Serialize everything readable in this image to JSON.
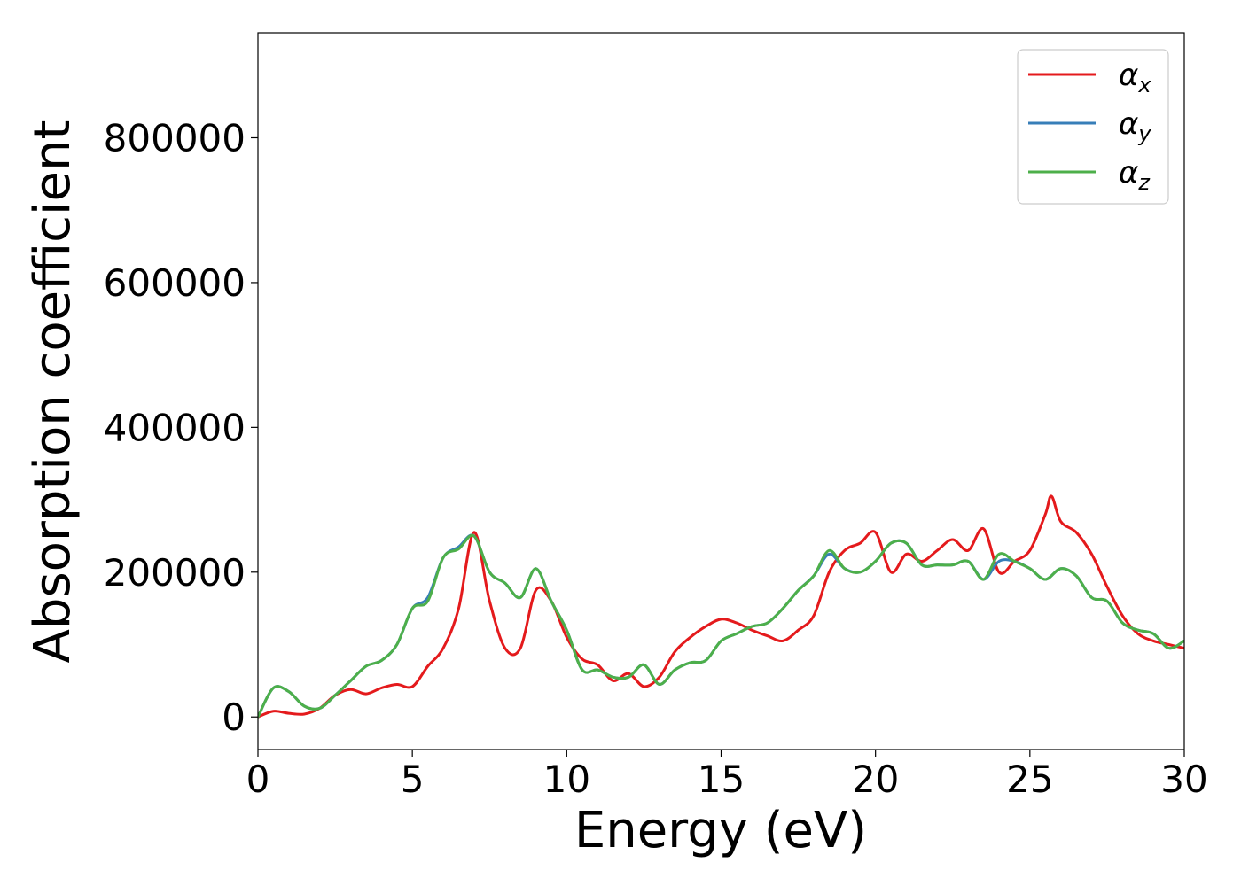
{
  "chart_data": {
    "type": "line",
    "title": "",
    "xlabel": "Energy (eV)",
    "ylabel": "Absorption coefficient",
    "xlim": [
      0,
      30
    ],
    "ylim": [
      -45000,
      945000
    ],
    "xticks": [
      0,
      5,
      10,
      15,
      20,
      25,
      30
    ],
    "yticks": [
      0,
      200000,
      400000,
      600000,
      800000
    ],
    "grid": false,
    "legend_position": "top-right",
    "series": [
      {
        "name": "αx",
        "symbol": "α",
        "subscript": "x",
        "color": "#e41a1c",
        "x": [
          0,
          0.5,
          1,
          1.5,
          2,
          2.5,
          3,
          3.5,
          4,
          4.5,
          5,
          5.5,
          6,
          6.5,
          7,
          7.5,
          8,
          8.5,
          9,
          9.5,
          10,
          10.5,
          11,
          11.5,
          12,
          12.5,
          13,
          13.5,
          14,
          14.5,
          15,
          15.5,
          16,
          16.5,
          17,
          17.5,
          18,
          18.5,
          19,
          19.5,
          20,
          20.5,
          21,
          21.5,
          22,
          22.5,
          23,
          23.5,
          24,
          24.5,
          25,
          25.5,
          25.7,
          26,
          26.5,
          27,
          27.5,
          28,
          28.5,
          29,
          29.5,
          30
        ],
        "y": [
          0,
          8000,
          5000,
          4000,
          12000,
          30000,
          38000,
          32000,
          40000,
          45000,
          42000,
          70000,
          95000,
          150000,
          255000,
          160000,
          95000,
          95000,
          175000,
          160000,
          110000,
          80000,
          72000,
          50000,
          60000,
          42000,
          55000,
          90000,
          110000,
          125000,
          135000,
          130000,
          120000,
          112000,
          105000,
          120000,
          140000,
          200000,
          230000,
          240000,
          255000,
          200000,
          225000,
          215000,
          230000,
          245000,
          230000,
          260000,
          200000,
          215000,
          230000,
          280000,
          305000,
          270000,
          255000,
          225000,
          180000,
          140000,
          115000,
          105000,
          100000,
          95000
        ]
      },
      {
        "name": "αy",
        "symbol": "α",
        "subscript": "y",
        "color": "#377eb8",
        "x": [
          0,
          0.5,
          1,
          1.5,
          2,
          2.5,
          3,
          3.5,
          4,
          4.5,
          5,
          5.5,
          6,
          6.5,
          7,
          7.5,
          8,
          8.5,
          9,
          9.5,
          10,
          10.5,
          11,
          11.5,
          12,
          12.5,
          13,
          13.5,
          14,
          14.5,
          15,
          15.5,
          16,
          16.5,
          17,
          17.5,
          18,
          18.5,
          19,
          19.5,
          20,
          20.5,
          21,
          21.5,
          22,
          22.5,
          23,
          23.5,
          24,
          24.5,
          25,
          25.5,
          26,
          26.5,
          27,
          27.5,
          28,
          28.5,
          29,
          29.5,
          30
        ],
        "y": [
          0,
          40000,
          35000,
          15000,
          12000,
          30000,
          50000,
          70000,
          78000,
          100000,
          150000,
          165000,
          220000,
          235000,
          250000,
          200000,
          185000,
          165000,
          205000,
          160000,
          120000,
          65000,
          65000,
          55000,
          55000,
          72000,
          45000,
          65000,
          75000,
          78000,
          105000,
          115000,
          125000,
          130000,
          150000,
          175000,
          195000,
          225000,
          205000,
          200000,
          215000,
          240000,
          240000,
          210000,
          210000,
          210000,
          215000,
          190000,
          215000,
          215000,
          205000,
          190000,
          205000,
          195000,
          165000,
          160000,
          130000,
          120000,
          115000,
          95000,
          105000
        ]
      },
      {
        "name": "αz",
        "symbol": "α",
        "subscript": "z",
        "color": "#4daf4a",
        "x": [
          0,
          0.5,
          1,
          1.5,
          2,
          2.5,
          3,
          3.5,
          4,
          4.5,
          5,
          5.5,
          6,
          6.5,
          7,
          7.5,
          8,
          8.5,
          9,
          9.5,
          10,
          10.5,
          11,
          11.5,
          12,
          12.5,
          13,
          13.5,
          14,
          14.5,
          15,
          15.5,
          16,
          16.5,
          17,
          17.5,
          18,
          18.5,
          19,
          19.5,
          20,
          20.5,
          21,
          21.5,
          22,
          22.5,
          23,
          23.5,
          24,
          24.5,
          25,
          25.5,
          26,
          26.5,
          27,
          27.5,
          28,
          28.5,
          29,
          29.5,
          30
        ],
        "y": [
          0,
          40000,
          35000,
          15000,
          12000,
          30000,
          50000,
          70000,
          78000,
          100000,
          150000,
          160000,
          220000,
          232000,
          250000,
          200000,
          185000,
          165000,
          205000,
          160000,
          120000,
          65000,
          65000,
          55000,
          55000,
          72000,
          45000,
          65000,
          75000,
          78000,
          105000,
          115000,
          125000,
          130000,
          150000,
          175000,
          195000,
          230000,
          205000,
          200000,
          215000,
          240000,
          240000,
          210000,
          210000,
          210000,
          215000,
          190000,
          225000,
          215000,
          205000,
          190000,
          205000,
          195000,
          165000,
          160000,
          130000,
          120000,
          115000,
          95000,
          105000
        ]
      }
    ]
  }
}
